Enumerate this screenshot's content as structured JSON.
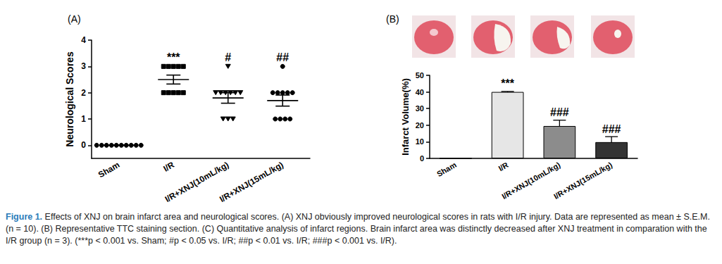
{
  "chart_data": [
    {
      "label": "(A)",
      "type": "scatter",
      "categories": [
        "Sham",
        "I/R",
        "I/R+XNJ(10mL/kg)",
        "I/R+XNJ(15mL/kg)"
      ],
      "points": [
        [
          0,
          0,
          0,
          0,
          0,
          0,
          0,
          0,
          0,
          0
        ],
        [
          3,
          3,
          3,
          3,
          3,
          2,
          2,
          2,
          2,
          2
        ],
        [
          3,
          2,
          2,
          2,
          2,
          2,
          2,
          1,
          1,
          1
        ],
        [
          3,
          2,
          2,
          2,
          2,
          2,
          1,
          1,
          1,
          1
        ]
      ],
      "values": [
        0,
        2.5,
        1.8,
        1.7
      ],
      "errors": [
        0,
        0.17,
        0.2,
        0.21
      ],
      "markers": [
        "circle",
        "square",
        "triangle-down",
        "circle"
      ],
      "color": "#000000",
      "annotations": [
        null,
        "***",
        "#",
        "##"
      ],
      "ylabel": "Neurological Scores",
      "ylim": [
        -0.5,
        4
      ],
      "yticks": [
        0,
        1,
        2,
        3,
        4
      ]
    },
    {
      "label": "(B)",
      "type": "bar",
      "categories": [
        "Sham",
        "I/R",
        "I/R+XNJ(10mL/kg)",
        "I/R+XNJ(15mL/kg)"
      ],
      "values": [
        0,
        40,
        19.5,
        9.8
      ],
      "errors": [
        0,
        0.3,
        3.5,
        3.3
      ],
      "colors": [
        "#ffffff",
        "#e6e6e6",
        "#8c8c8c",
        "#333333"
      ],
      "annotations": [
        null,
        "***",
        "###",
        "###"
      ],
      "ylabel": "Infarct Volume(%)",
      "ylim": [
        0,
        50
      ],
      "yticks": [
        0,
        10,
        20,
        30,
        40,
        50
      ]
    }
  ],
  "caption": {
    "label": "Figure 1.",
    "text": "Effects of XNJ on brain infarct area and neurological scores. (A) XNJ obviously improved neurological scores in rats with I/R injury. Data are represented as mean ± S.E.M. (n = 10). (B) Representative TTC staining section. (C) Quantitative analysis of infarct regions. Brain infarct area was distinctly decreased after XNJ treatment in comparation with the I/R group (n = 3). (***p < 0.001 vs. Sham; #p < 0.05 vs. I/R; ##p < 0.01 vs. I/R; ###p < 0.001 vs. I/R)."
  }
}
